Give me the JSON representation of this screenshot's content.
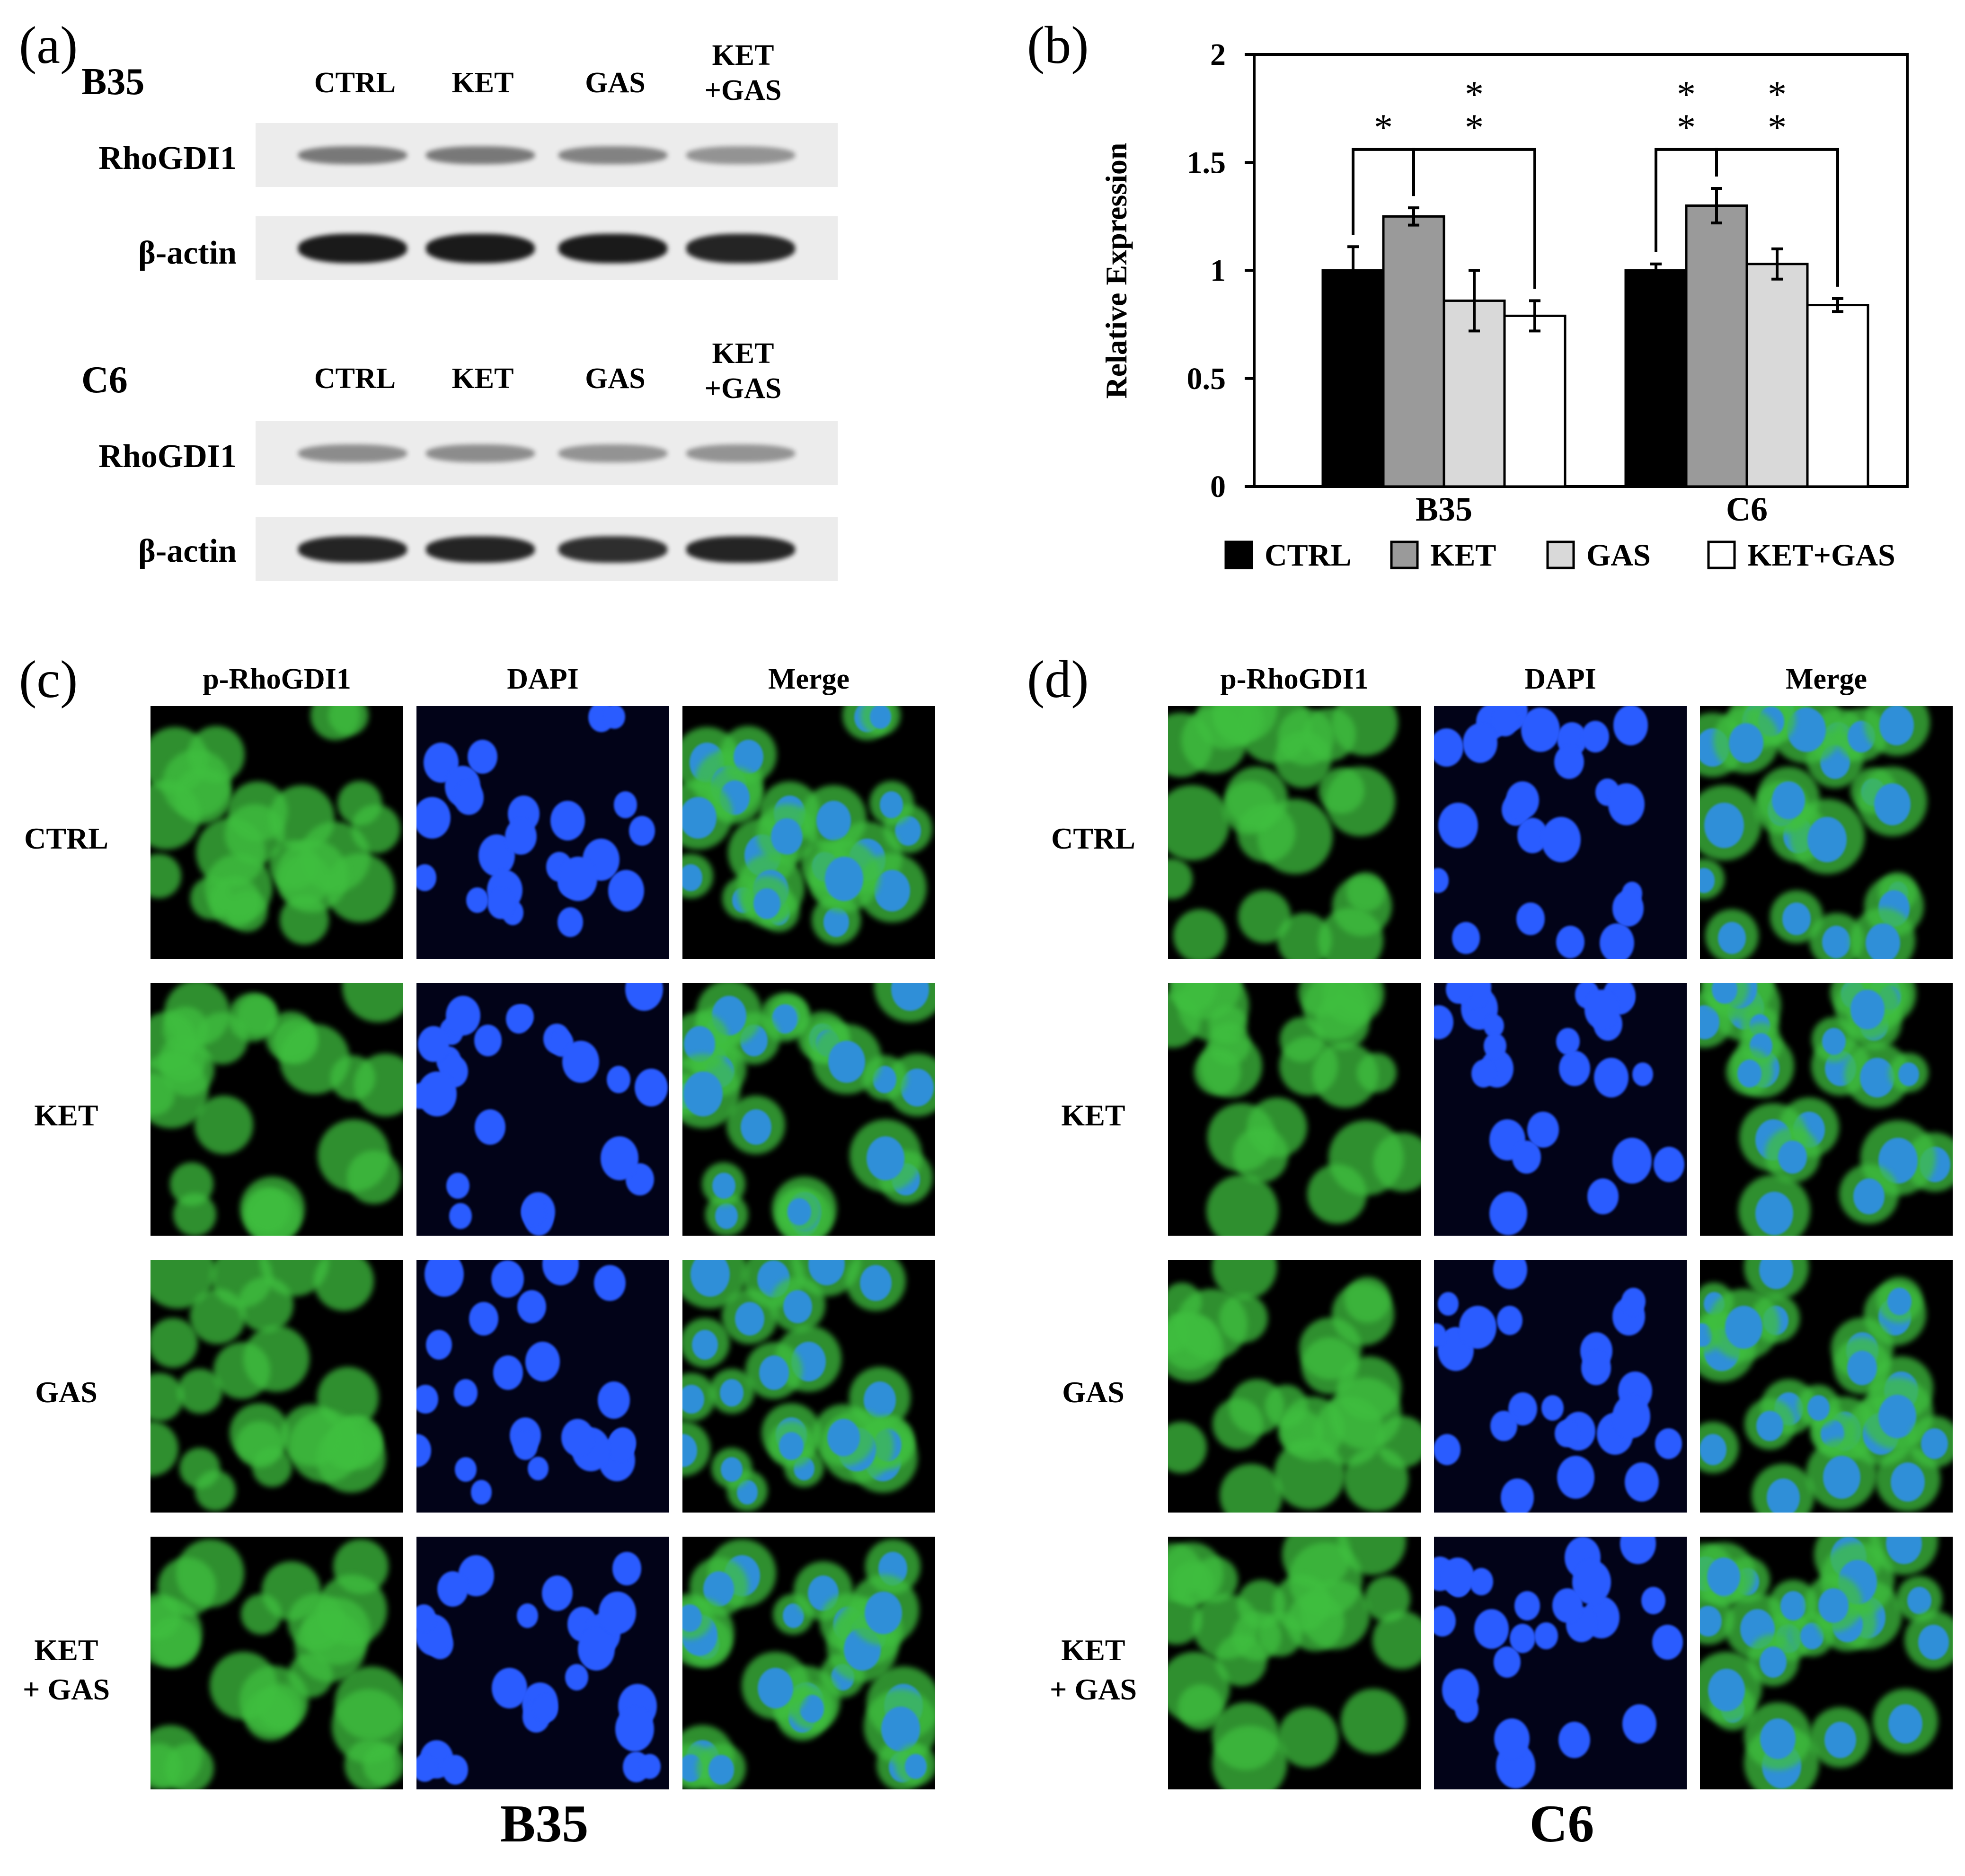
{
  "panel_a": {
    "label": "(a)",
    "blots": [
      {
        "cell_line": "B35",
        "lanes": [
          "CTRL",
          "KET",
          "GAS",
          "KET\n+GAS"
        ],
        "rows": [
          {
            "name": "RhoGDI1",
            "intensity": [
              0.55,
              0.55,
              0.5,
              0.42
            ]
          },
          {
            "name": "β-actin",
            "intensity": [
              1.0,
              1.0,
              1.0,
              0.95
            ]
          }
        ]
      },
      {
        "cell_line": "C6",
        "lanes": [
          "CTRL",
          "KET",
          "GAS",
          "KET\n+GAS"
        ],
        "rows": [
          {
            "name": "RhoGDI1",
            "intensity": [
              0.45,
              0.45,
              0.42,
              0.42
            ]
          },
          {
            "name": "β-actin",
            "intensity": [
              0.95,
              0.95,
              0.9,
              0.95
            ]
          }
        ]
      }
    ]
  },
  "panel_b": {
    "label": "(b)"
  },
  "chart_data": {
    "type": "bar",
    "categories": [
      "B35",
      "C6"
    ],
    "ylabel": "Relative Expression",
    "ylim": [
      0,
      2
    ],
    "yticks": [
      "0",
      "0.5",
      "1",
      "1.5",
      "2"
    ],
    "legend_position": "bottom",
    "series": [
      {
        "name": "CTRL",
        "values": [
          1.0,
          1.0
        ],
        "errors": [
          0.11,
          0.03
        ],
        "color": "#000000"
      },
      {
        "name": "KET",
        "values": [
          1.25,
          1.3
        ],
        "errors": [
          0.04,
          0.08
        ],
        "color": "#9a9a9a"
      },
      {
        "name": "GAS",
        "values": [
          0.86,
          1.03
        ],
        "errors": [
          0.14,
          0.07
        ],
        "color": "#d9d9d9"
      },
      {
        "name": "KET+GAS",
        "values": [
          0.79,
          0.84
        ],
        "errors": [
          0.07,
          0.03
        ],
        "color": "#ffffff"
      }
    ],
    "significance": [
      {
        "group": 0,
        "from": 0,
        "to": 1,
        "label": "*"
      },
      {
        "group": 0,
        "from": 1,
        "to": 3,
        "label": "**"
      },
      {
        "group": 1,
        "from": 0,
        "to": 1,
        "label": "**"
      },
      {
        "group": 1,
        "from": 1,
        "to": 3,
        "label": "**"
      }
    ]
  },
  "panel_c": {
    "label": "(c)",
    "cell_line": "B35",
    "columns": [
      "p-RhoGDI1",
      "DAPI",
      "Merge"
    ],
    "rows": [
      "CTRL",
      "KET",
      "GAS",
      "KET\n+ GAS"
    ]
  },
  "panel_d": {
    "label": "(d)",
    "cell_line": "C6",
    "columns": [
      "p-RhoGDI1",
      "DAPI",
      "Merge"
    ],
    "rows": [
      "CTRL",
      "KET",
      "GAS",
      "KET\n+ GAS"
    ]
  },
  "colors": {
    "green_channel": "#3fbf3f",
    "blue_channel": "#2a5cff",
    "merge_nucleus": "#2f8fd8",
    "band": "#1a1a1a"
  }
}
